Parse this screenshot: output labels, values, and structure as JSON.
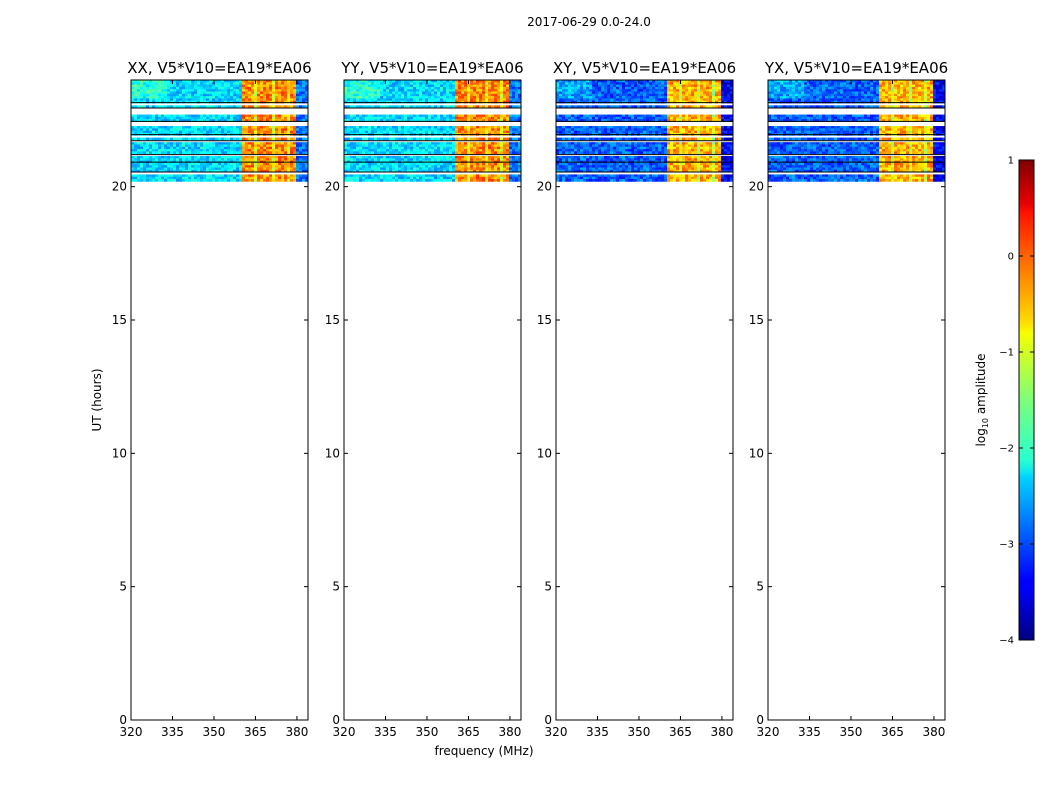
{
  "chart_data": {
    "type": "heatmap",
    "suptitle": "2017-06-29 0.0-24.0",
    "xlabel": "frequency (MHz)",
    "ylabel": "UT (hours)",
    "xlim": [
      320,
      384
    ],
    "ylim": [
      0,
      24
    ],
    "xticks": [
      320,
      335,
      350,
      365,
      380
    ],
    "yticks": [
      0,
      5,
      10,
      15,
      20
    ],
    "data_time_range": [
      20.2,
      24.0
    ],
    "flagged_time_bands": [
      [
        23.05,
        23.15
      ],
      [
        22.7,
        22.95
      ],
      [
        22.3,
        22.45
      ],
      [
        21.85,
        21.95
      ],
      [
        21.65,
        21.72
      ],
      [
        21.15,
        21.2
      ],
      [
        20.85,
        20.92
      ],
      [
        20.5,
        20.55
      ]
    ],
    "panels": [
      {
        "title": "XX, V5*V10=EA19*EA06",
        "background_log_amp": -2.3,
        "rfi_band_mhz": [
          360,
          380
        ],
        "rfi_log_amp": -0.3
      },
      {
        "title": "YY, V5*V10=EA19*EA06",
        "background_log_amp": -2.3,
        "rfi_band_mhz": [
          360,
          380
        ],
        "rfi_log_amp": -0.3
      },
      {
        "title": "XY, V5*V10=EA19*EA06",
        "background_log_amp": -2.9,
        "rfi_band_mhz": [
          360,
          380
        ],
        "rfi_log_amp": -0.5
      },
      {
        "title": "YX, V5*V10=EA19*EA06",
        "background_log_amp": -2.9,
        "rfi_band_mhz": [
          360,
          380
        ],
        "rfi_log_amp": -0.5
      }
    ],
    "colorbar": {
      "label": "log10 amplitude",
      "label_main": "log",
      "label_sub": "10",
      "label_rest": " amplitude",
      "range": [
        -4,
        1
      ],
      "ticks": [
        1,
        0,
        -1,
        -2,
        -3,
        -4
      ],
      "tick_labels": [
        "1",
        "0",
        "−1",
        "−2",
        "−3",
        "−4"
      ],
      "colormap": "jet"
    }
  }
}
